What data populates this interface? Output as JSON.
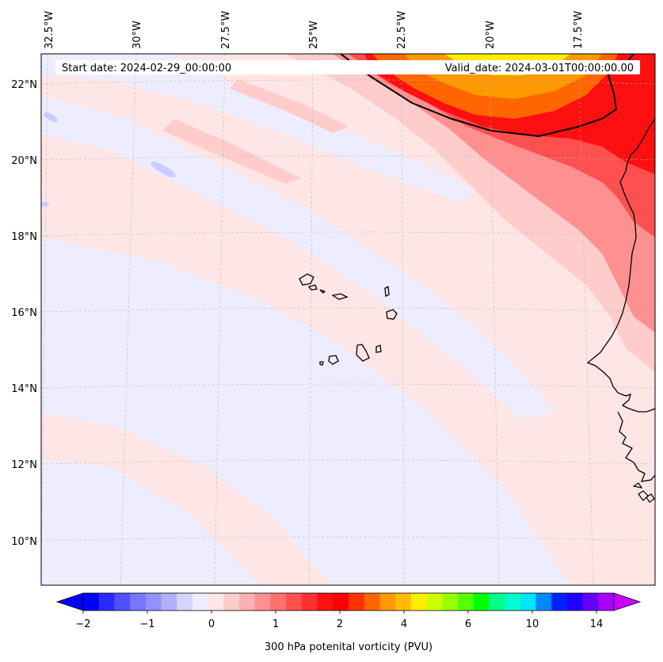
{
  "header": {
    "start_label": "Start date: 2024-02-29_00:00:00",
    "valid_label": "Valid_date: 2024-03-01T00:00:00.00"
  },
  "axes": {
    "lon_labels": [
      "32.5°W",
      "30°W",
      "27.5°W",
      "25°W",
      "22.5°W",
      "20°W",
      "17.5°W"
    ],
    "lat_labels": [
      "22°N",
      "20°N",
      "18°N",
      "16°N",
      "14°N",
      "12°N",
      "10°N"
    ]
  },
  "colorbar": {
    "title": "300 hPa potenital vorticity (PVU)",
    "tick_labels": [
      "−2",
      "−1",
      "0",
      "1",
      "2",
      "4",
      "6",
      "10",
      "14"
    ],
    "colors": [
      "#0000ff",
      "#2b2bff",
      "#5050ff",
      "#7676ff",
      "#9292ff",
      "#b0b0ff",
      "#d4d4ff",
      "#ededff",
      "#ffe6e6",
      "#ffcccc",
      "#ffb0b0",
      "#ff9090",
      "#ff7070",
      "#ff5050",
      "#ff3030",
      "#ff1010",
      "#ff0000",
      "#ff3300",
      "#ff6600",
      "#ff9900",
      "#ffbb00",
      "#ffee00",
      "#ccff00",
      "#99ff00",
      "#55ff00",
      "#00ff00",
      "#00ff88",
      "#00ffcc",
      "#00e5ff",
      "#0088ff",
      "#0022ff",
      "#2200ff",
      "#6600ff",
      "#aa00ff"
    ],
    "extend_low_color": "#0000ff",
    "extend_high_color": "#cc00ff"
  },
  "map_colors": {
    "background_neutral": "#ffe6e6",
    "negative_band": "#ededff",
    "negative_spot": "#ccccff",
    "light_red": "#ffcccc",
    "mid_red": "#ff9090",
    "red": "#ff3030",
    "deep_red": "#ff0000",
    "orange": "#ff9900",
    "yellow": "#ffee00"
  }
}
